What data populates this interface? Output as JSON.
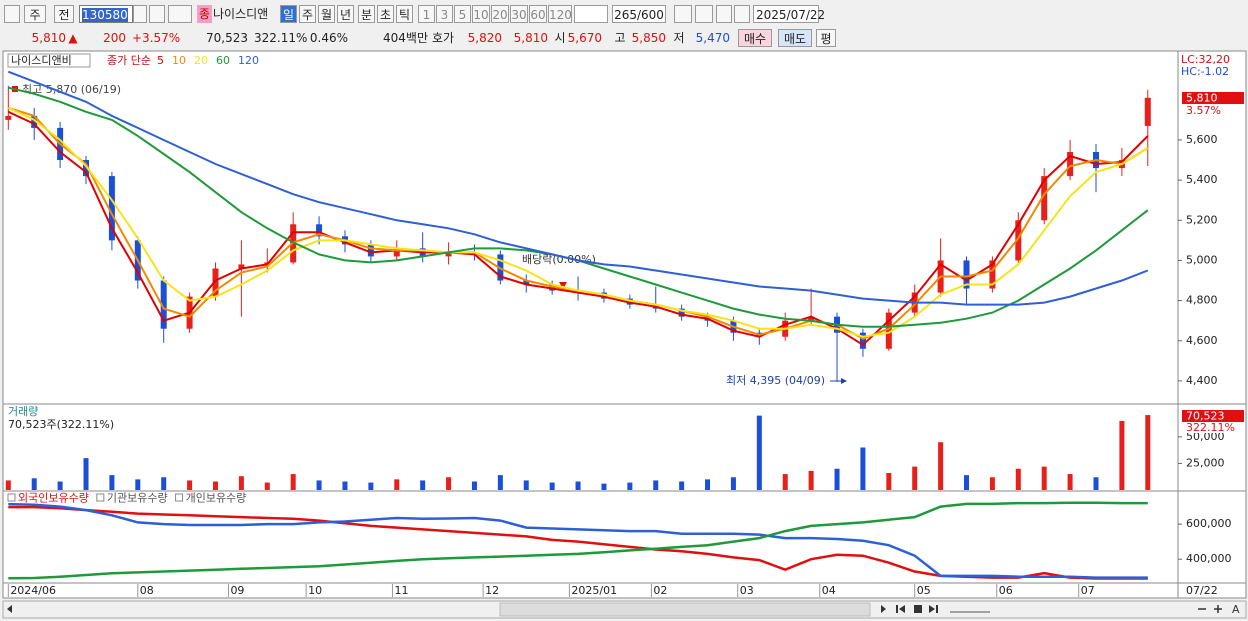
{
  "toolbar": {
    "period_button": "주",
    "view_button": "전",
    "code": "130580",
    "market_badge": "종",
    "name": "나이스디앤",
    "periods": [
      "일",
      "주",
      "월",
      "년",
      "분",
      "초",
      "틱"
    ],
    "intervals": [
      "1",
      "3",
      "5",
      "10",
      "20",
      "30",
      "60",
      "120"
    ],
    "count": "265",
    "count_max": "/600",
    "date": "2025/07/22"
  },
  "info": {
    "price": "5,810",
    "arrow": "▲",
    "change": "200",
    "change_pct": "+3.57%",
    "volume": "70,523",
    "volume_ratio": "322.11%",
    "turnover": "0.46%",
    "amount": "404백만",
    "quote_label": "호가",
    "ask": "5,820",
    "bid": "5,810",
    "open_label": "시",
    "open": "5,670",
    "high_label": "고",
    "high": "5,850",
    "low_label": "저",
    "low": "5,470",
    "buttons": [
      "매수",
      "매도",
      "평"
    ]
  },
  "chart_data": [
    {
      "type": "candlestick",
      "title": "나이스디앤비",
      "legend_prefix": "종가 단순",
      "corner_labels": [
        "LC:32,20",
        "HC:-1.02"
      ],
      "high_note": "최고 5,870 (06/19)",
      "low_note": "최저 4,395 (04/09)",
      "dividend_note": "배당락(0.00%)",
      "price_tag": "5,810",
      "price_tag_pct": "3.57%",
      "up_color": "#e8201c",
      "down_color": "#1c4fd8",
      "xlim": [
        -1,
        271
      ],
      "ylim": [
        4290,
        6038
      ],
      "yticks": [
        {
          "value": 5600,
          "label": "5,600"
        },
        {
          "value": 5400,
          "label": "5,400"
        },
        {
          "value": 5200,
          "label": "5,200"
        },
        {
          "value": 5000,
          "label": "5,000"
        },
        {
          "value": 4800,
          "label": "4,800"
        },
        {
          "value": 4600,
          "label": "4,600"
        },
        {
          "value": 4400,
          "label": "4,400"
        }
      ],
      "x": [
        0,
        6,
        12,
        18,
        24,
        30,
        36,
        42,
        48,
        54,
        60,
        66,
        72,
        78,
        84,
        90,
        96,
        102,
        108,
        114,
        120,
        126,
        132,
        138,
        144,
        150,
        156,
        162,
        168,
        174,
        180,
        186,
        192,
        198,
        204,
        210,
        216,
        222,
        228,
        234,
        240,
        246,
        252,
        258,
        264
      ],
      "open": [
        5700,
        5720,
        5660,
        5500,
        5420,
        5100,
        4900,
        4660,
        4820,
        4960,
        4980,
        4990,
        5180,
        5120,
        5080,
        5020,
        5060,
        5020,
        5040,
        5030,
        4900,
        4880,
        4850,
        4840,
        4810,
        4780,
        4760,
        4720,
        4700,
        4640,
        4620,
        4700,
        4720,
        4640,
        4560,
        4740,
        4840,
        5000,
        4860,
        5000,
        5200,
        5420,
        5540,
        5460,
        5670
      ],
      "high": [
        5870,
        5760,
        5690,
        5520,
        5440,
        5120,
        4920,
        4840,
        4990,
        5100,
        5060,
        5240,
        5220,
        5150,
        5100,
        5100,
        5140,
        5090,
        5080,
        5050,
        4930,
        4900,
        4920,
        4860,
        4830,
        4870,
        4780,
        4740,
        4720,
        4660,
        4740,
        4860,
        4740,
        4660,
        4760,
        4880,
        5110,
        5020,
        5020,
        5240,
        5460,
        5600,
        5580,
        5560,
        5850
      ],
      "low": [
        5650,
        5600,
        5460,
        5380,
        5050,
        4860,
        4590,
        4640,
        4800,
        4720,
        4940,
        4980,
        5080,
        5040,
        4990,
        5000,
        4990,
        4980,
        5000,
        4880,
        4840,
        4830,
        4800,
        4790,
        4760,
        4740,
        4700,
        4670,
        4600,
        4580,
        4600,
        4680,
        4395,
        4520,
        4550,
        4720,
        4820,
        4780,
        4840,
        4980,
        5180,
        5400,
        5340,
        5420,
        5470
      ],
      "close": [
        5720,
        5660,
        5500,
        5420,
        5100,
        4900,
        4660,
        4820,
        4960,
        4980,
        4990,
        5180,
        5120,
        5080,
        5020,
        5060,
        5020,
        5040,
        5030,
        4900,
        4880,
        4850,
        4840,
        4810,
        4780,
        4760,
        4720,
        4700,
        4640,
        4620,
        4700,
        4720,
        4640,
        4560,
        4740,
        4840,
        5000,
        4860,
        5000,
        5200,
        5420,
        5540,
        5460,
        5500,
        5810
      ],
      "series": [
        {
          "name": "5",
          "color": "#e00000",
          "values": [
            5740,
            5680,
            5540,
            5440,
            5160,
            4940,
            4700,
            4740,
            4900,
            4960,
            4980,
            5140,
            5140,
            5090,
            5040,
            5050,
            5040,
            5040,
            5030,
            4920,
            4880,
            4860,
            4840,
            4820,
            4790,
            4770,
            4730,
            4710,
            4650,
            4620,
            4680,
            4720,
            4660,
            4580,
            4700,
            4820,
            4980,
            4900,
            4980,
            5180,
            5400,
            5520,
            5480,
            5490,
            5620
          ]
        },
        {
          "name": "10",
          "color": "#f08a00",
          "values": [
            5760,
            5720,
            5580,
            5480,
            5230,
            5000,
            4760,
            4720,
            4850,
            4940,
            4970,
            5090,
            5130,
            5100,
            5060,
            5050,
            5050,
            5040,
            5040,
            4960,
            4900,
            4870,
            4850,
            4830,
            4800,
            4780,
            4750,
            4720,
            4670,
            4630,
            4660,
            4700,
            4680,
            4610,
            4660,
            4780,
            4920,
            4920,
            4950,
            5110,
            5330,
            5470,
            5500,
            5480,
            5560
          ]
        },
        {
          "name": "20",
          "color": "#f5e41a",
          "values": [
            5760,
            5700,
            5600,
            5470,
            5300,
            5110,
            4900,
            4800,
            4820,
            4880,
            4950,
            5050,
            5100,
            5100,
            5080,
            5060,
            5050,
            5040,
            5040,
            5000,
            4950,
            4880,
            4850,
            4830,
            4800,
            4780,
            4750,
            4730,
            4700,
            4660,
            4660,
            4680,
            4660,
            4620,
            4640,
            4720,
            4830,
            4880,
            4880,
            4980,
            5150,
            5320,
            5440,
            5480,
            5560
          ]
        },
        {
          "name": "60",
          "color": "#1f9a3a",
          "values": [
            5860,
            5830,
            5790,
            5740,
            5700,
            5620,
            5530,
            5440,
            5340,
            5240,
            5160,
            5090,
            5030,
            5000,
            4990,
            5000,
            5020,
            5040,
            5060,
            5060,
            5050,
            5030,
            5000,
            4960,
            4920,
            4880,
            4840,
            4800,
            4760,
            4730,
            4710,
            4700,
            4680,
            4670,
            4670,
            4680,
            4690,
            4710,
            4740,
            4800,
            4880,
            4960,
            5050,
            5150,
            5250
          ]
        },
        {
          "name": "120",
          "color": "#2f5fd6",
          "values": [
            5940,
            5890,
            5840,
            5790,
            5720,
            5660,
            5600,
            5540,
            5480,
            5430,
            5380,
            5330,
            5290,
            5260,
            5230,
            5200,
            5180,
            5160,
            5130,
            5090,
            5060,
            5030,
            5000,
            4980,
            4970,
            4950,
            4930,
            4910,
            4890,
            4870,
            4860,
            4850,
            4830,
            4810,
            4800,
            4790,
            4790,
            4780,
            4780,
            4780,
            4790,
            4820,
            4860,
            4900,
            4950
          ]
        }
      ]
    },
    {
      "type": "bar",
      "title": "거래량",
      "subtitle": "70,523주(322.11%)",
      "tag": "70,523",
      "tag_pct": "322.11%",
      "up_color": "#e8201c",
      "down_color": "#1c4fd8",
      "xlim": [
        -1,
        271
      ],
      "ylim": [
        0,
        80000
      ],
      "yticks": [
        {
          "value": 50000,
          "label": "50,000"
        },
        {
          "value": 25000,
          "label": "25,000"
        }
      ],
      "x": [
        0,
        6,
        12,
        18,
        24,
        30,
        36,
        42,
        48,
        54,
        60,
        66,
        72,
        78,
        84,
        90,
        96,
        102,
        108,
        114,
        120,
        126,
        132,
        138,
        144,
        150,
        156,
        162,
        168,
        174,
        180,
        186,
        192,
        198,
        204,
        210,
        216,
        222,
        228,
        234,
        240,
        246,
        252,
        258,
        264
      ],
      "values": [
        9000,
        11000,
        8000,
        30000,
        14000,
        10000,
        12000,
        9000,
        8000,
        13000,
        7000,
        15000,
        9000,
        8000,
        7000,
        10000,
        9000,
        12000,
        8000,
        14000,
        9000,
        7000,
        8000,
        6000,
        7000,
        9000,
        8000,
        10000,
        12000,
        70000,
        15000,
        18000,
        20000,
        40000,
        16000,
        22000,
        45000,
        14000,
        12000,
        20000,
        22000,
        15000,
        12000,
        65000,
        70523
      ]
    },
    {
      "type": "line",
      "xlim": [
        -1,
        271
      ],
      "ylim": [
        270000,
        783000
      ],
      "yticks": [
        {
          "value": 600000,
          "label": "600,000"
        },
        {
          "value": 400000,
          "label": "400,000"
        }
      ],
      "xticks": [
        {
          "value": 0,
          "label": "2024/06"
        },
        {
          "value": 30,
          "label": "08"
        },
        {
          "value": 51,
          "label": "09"
        },
        {
          "value": 69,
          "label": "10"
        },
        {
          "value": 89,
          "label": "11"
        },
        {
          "value": 110,
          "label": "12"
        },
        {
          "value": 130,
          "label": "2025/01"
        },
        {
          "value": 149,
          "label": "02"
        },
        {
          "value": 169,
          "label": "03"
        },
        {
          "value": 188,
          "label": "04"
        },
        {
          "value": 210,
          "label": "05"
        },
        {
          "value": 229,
          "label": "06"
        },
        {
          "value": 248,
          "label": "07"
        }
      ],
      "x_end_label": "07/22",
      "x": [
        0,
        6,
        12,
        18,
        24,
        30,
        36,
        42,
        48,
        54,
        60,
        66,
        72,
        78,
        84,
        90,
        96,
        102,
        108,
        114,
        120,
        126,
        132,
        138,
        144,
        150,
        156,
        162,
        168,
        174,
        180,
        186,
        192,
        198,
        204,
        210,
        216,
        222,
        228,
        234,
        240,
        246,
        252,
        258,
        264
      ],
      "series": [
        {
          "name": "외국인보유수량",
          "color": "#e01010",
          "values": [
            697000,
            697000,
            690000,
            680000,
            670000,
            660000,
            655000,
            650000,
            645000,
            640000,
            635000,
            630000,
            620000,
            605000,
            590000,
            580000,
            570000,
            560000,
            550000,
            540000,
            530000,
            510000,
            500000,
            485000,
            470000,
            455000,
            445000,
            430000,
            410000,
            395000,
            340000,
            400000,
            425000,
            420000,
            380000,
            330000,
            305000,
            300000,
            295000,
            295000,
            320000,
            295000,
            290000,
            290000,
            290000
          ]
        },
        {
          "name": "기관보유수량",
          "color": "#2f5fd6",
          "values": [
            714000,
            710000,
            700000,
            680000,
            650000,
            610000,
            600000,
            595000,
            595000,
            595000,
            600000,
            600000,
            610000,
            615000,
            625000,
            635000,
            630000,
            632000,
            635000,
            620000,
            580000,
            575000,
            570000,
            565000,
            560000,
            560000,
            545000,
            545000,
            545000,
            540000,
            520000,
            520000,
            515000,
            505000,
            480000,
            420000,
            305000,
            305000,
            305000,
            300000,
            300000,
            300000,
            295000,
            295000,
            295000
          ]
        },
        {
          "name": "개인보유수량",
          "color": "#1f9a3a",
          "values": [
            291000,
            293000,
            300000,
            310000,
            320000,
            325000,
            330000,
            335000,
            340000,
            345000,
            350000,
            355000,
            360000,
            370000,
            380000,
            390000,
            400000,
            405000,
            410000,
            415000,
            420000,
            425000,
            430000,
            440000,
            450000,
            460000,
            470000,
            480000,
            500000,
            520000,
            560000,
            590000,
            600000,
            610000,
            625000,
            640000,
            700000,
            715000,
            715000,
            720000,
            720000,
            722000,
            722000,
            720000,
            720000
          ]
        }
      ]
    }
  ],
  "bottom_bar": {
    "font_button": "A"
  }
}
